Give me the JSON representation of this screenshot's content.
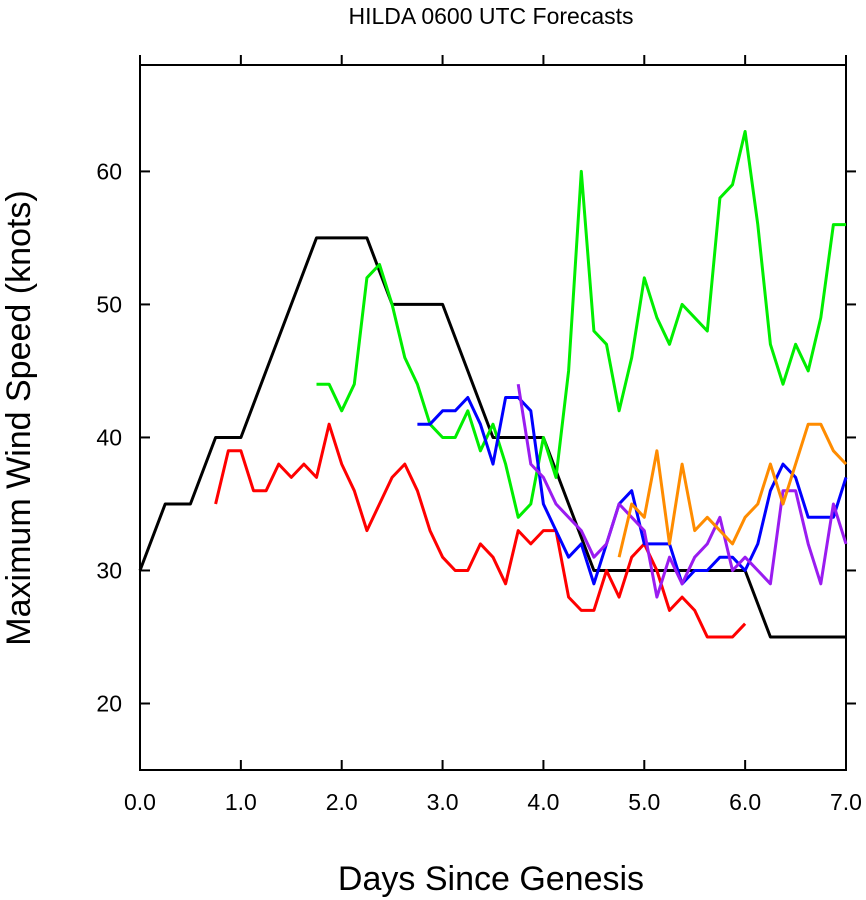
{
  "chart_data": {
    "type": "line",
    "title": "HILDA 0600 UTC Forecasts",
    "xlabel": "Days Since Genesis",
    "ylabel": "Maximum Wind Speed (knots)",
    "xlim": [
      0,
      7
    ],
    "ylim": [
      15,
      68
    ],
    "x_ticks": [
      0,
      1,
      2,
      3,
      4,
      5,
      6,
      7
    ],
    "x_tick_labels": [
      "0.0",
      "1.0",
      "2.0",
      "3.0",
      "4.0",
      "5.0",
      "6.0",
      "7.0"
    ],
    "y_ticks": [
      20,
      30,
      40,
      50,
      60
    ],
    "y_tick_labels": [
      "20",
      "30",
      "40",
      "50",
      "60"
    ],
    "grid": false,
    "legend": "none",
    "series": [
      {
        "color": "#000000",
        "points": [
          [
            0,
            30
          ],
          [
            0.25,
            35
          ],
          [
            0.5,
            35
          ],
          [
            0.75,
            40
          ],
          [
            1.0,
            40
          ],
          [
            1.25,
            45
          ],
          [
            1.5,
            50
          ],
          [
            1.75,
            55
          ],
          [
            2.0,
            55
          ],
          [
            2.25,
            55
          ],
          [
            2.5,
            50
          ],
          [
            2.75,
            50
          ],
          [
            3.0,
            50
          ],
          [
            3.25,
            45
          ],
          [
            3.5,
            40
          ],
          [
            3.75,
            40
          ],
          [
            4.0,
            40
          ],
          [
            4.25,
            35
          ],
          [
            4.5,
            30
          ],
          [
            4.75,
            30
          ],
          [
            5.0,
            30
          ],
          [
            5.25,
            30
          ],
          [
            5.5,
            30
          ],
          [
            5.75,
            30
          ],
          [
            6.0,
            30
          ],
          [
            6.25,
            25
          ],
          [
            6.5,
            25
          ],
          [
            6.75,
            25
          ],
          [
            7.0,
            25
          ]
        ]
      },
      {
        "color": "#ff0000",
        "points": [
          [
            0.75,
            35
          ],
          [
            0.875,
            39
          ],
          [
            1.0,
            39
          ],
          [
            1.125,
            36
          ],
          [
            1.25,
            36
          ],
          [
            1.375,
            38
          ],
          [
            1.5,
            37
          ],
          [
            1.625,
            38
          ],
          [
            1.75,
            37
          ],
          [
            1.875,
            41
          ],
          [
            2.0,
            38
          ],
          [
            2.125,
            36
          ],
          [
            2.25,
            33
          ],
          [
            2.375,
            35
          ],
          [
            2.5,
            37
          ],
          [
            2.625,
            38
          ],
          [
            2.75,
            36
          ],
          [
            2.875,
            33
          ],
          [
            3.0,
            31
          ],
          [
            3.125,
            30
          ],
          [
            3.25,
            30
          ],
          [
            3.375,
            32
          ],
          [
            3.5,
            31
          ],
          [
            3.625,
            29
          ],
          [
            3.75,
            33
          ],
          [
            3.875,
            32
          ],
          [
            4.0,
            33
          ],
          [
            4.125,
            33
          ],
          [
            4.25,
            28
          ],
          [
            4.375,
            27
          ],
          [
            4.5,
            27
          ],
          [
            4.625,
            30
          ],
          [
            4.75,
            28
          ],
          [
            4.875,
            31
          ],
          [
            5.0,
            32
          ],
          [
            5.125,
            30
          ],
          [
            5.25,
            27
          ],
          [
            5.375,
            28
          ],
          [
            5.5,
            27
          ],
          [
            5.625,
            25
          ],
          [
            5.75,
            25
          ],
          [
            5.875,
            25
          ],
          [
            6.0,
            26
          ]
        ]
      },
      {
        "color": "#00ee00",
        "points": [
          [
            1.75,
            44
          ],
          [
            1.875,
            44
          ],
          [
            2.0,
            42
          ],
          [
            2.125,
            44
          ],
          [
            2.25,
            52
          ],
          [
            2.375,
            53
          ],
          [
            2.5,
            50
          ],
          [
            2.625,
            46
          ],
          [
            2.75,
            44
          ],
          [
            2.875,
            41
          ],
          [
            3.0,
            40
          ],
          [
            3.125,
            40
          ],
          [
            3.25,
            42
          ],
          [
            3.375,
            39
          ],
          [
            3.5,
            41
          ],
          [
            3.625,
            38
          ],
          [
            3.75,
            34
          ],
          [
            3.875,
            35
          ],
          [
            4.0,
            40
          ],
          [
            4.125,
            37
          ],
          [
            4.25,
            45
          ],
          [
            4.375,
            60
          ],
          [
            4.5,
            48
          ],
          [
            4.625,
            47
          ],
          [
            4.75,
            42
          ],
          [
            4.875,
            46
          ],
          [
            5.0,
            52
          ],
          [
            5.125,
            49
          ],
          [
            5.25,
            47
          ],
          [
            5.375,
            50
          ],
          [
            5.5,
            49
          ],
          [
            5.625,
            48
          ],
          [
            5.75,
            58
          ],
          [
            5.875,
            59
          ],
          [
            6.0,
            63
          ],
          [
            6.125,
            56
          ],
          [
            6.25,
            47
          ],
          [
            6.375,
            44
          ],
          [
            6.5,
            47
          ],
          [
            6.625,
            45
          ],
          [
            6.75,
            49
          ],
          [
            6.875,
            56
          ],
          [
            7.0,
            56
          ]
        ]
      },
      {
        "color": "#0000ff",
        "points": [
          [
            2.75,
            41
          ],
          [
            2.875,
            41
          ],
          [
            3.0,
            42
          ],
          [
            3.125,
            42
          ],
          [
            3.25,
            43
          ],
          [
            3.375,
            41
          ],
          [
            3.5,
            38
          ],
          [
            3.625,
            43
          ],
          [
            3.75,
            43
          ],
          [
            3.875,
            42
          ],
          [
            4.0,
            35
          ],
          [
            4.125,
            33
          ],
          [
            4.25,
            31
          ],
          [
            4.375,
            32
          ],
          [
            4.5,
            29
          ],
          [
            4.625,
            32
          ],
          [
            4.75,
            35
          ],
          [
            4.875,
            36
          ],
          [
            5.0,
            32
          ],
          [
            5.125,
            32
          ],
          [
            5.25,
            32
          ],
          [
            5.375,
            29
          ],
          [
            5.5,
            30
          ],
          [
            5.625,
            30
          ],
          [
            5.75,
            31
          ],
          [
            5.875,
            31
          ],
          [
            6.0,
            30
          ],
          [
            6.125,
            32
          ],
          [
            6.25,
            36
          ],
          [
            6.375,
            38
          ],
          [
            6.5,
            37
          ],
          [
            6.625,
            34
          ],
          [
            6.75,
            34
          ],
          [
            6.875,
            34
          ],
          [
            7.0,
            37
          ]
        ]
      },
      {
        "color": "#9a1cf0",
        "points": [
          [
            3.75,
            44
          ],
          [
            3.875,
            38
          ],
          [
            4.0,
            37
          ],
          [
            4.125,
            35
          ],
          [
            4.25,
            34
          ],
          [
            4.375,
            33
          ],
          [
            4.5,
            31
          ],
          [
            4.625,
            32
          ],
          [
            4.75,
            35
          ],
          [
            4.875,
            34
          ],
          [
            5.0,
            33
          ],
          [
            5.125,
            28
          ],
          [
            5.25,
            31
          ],
          [
            5.375,
            29
          ],
          [
            5.5,
            31
          ],
          [
            5.625,
            32
          ],
          [
            5.75,
            34
          ],
          [
            5.875,
            30
          ],
          [
            6.0,
            31
          ],
          [
            6.125,
            30
          ],
          [
            6.25,
            29
          ],
          [
            6.375,
            36
          ],
          [
            6.5,
            36
          ],
          [
            6.625,
            32
          ],
          [
            6.75,
            29
          ],
          [
            6.875,
            35
          ],
          [
            7.0,
            32
          ]
        ]
      },
      {
        "color": "#ff8c00",
        "points": [
          [
            4.75,
            31
          ],
          [
            4.875,
            35
          ],
          [
            5.0,
            34
          ],
          [
            5.125,
            39
          ],
          [
            5.25,
            32
          ],
          [
            5.375,
            38
          ],
          [
            5.5,
            33
          ],
          [
            5.625,
            34
          ],
          [
            5.75,
            33
          ],
          [
            5.875,
            32
          ],
          [
            6.0,
            34
          ],
          [
            6.125,
            35
          ],
          [
            6.25,
            38
          ],
          [
            6.375,
            35
          ],
          [
            6.5,
            38
          ],
          [
            6.625,
            41
          ],
          [
            6.75,
            41
          ],
          [
            6.875,
            39
          ],
          [
            7.0,
            38
          ]
        ]
      }
    ]
  }
}
